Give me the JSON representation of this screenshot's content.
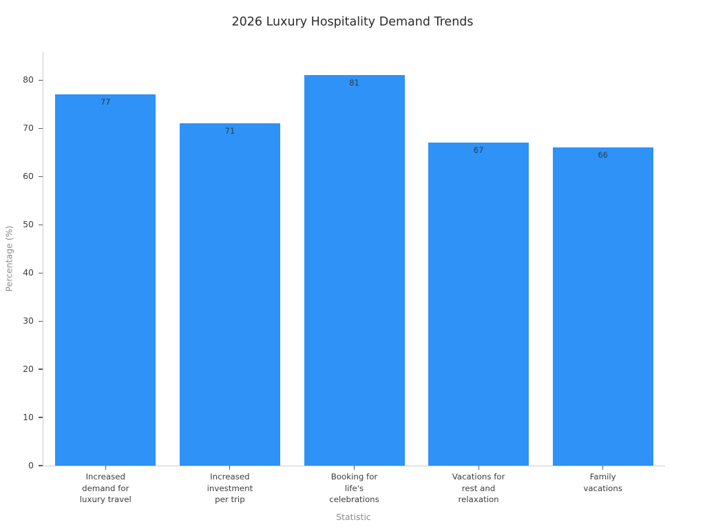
{
  "chart_data": {
    "type": "bar",
    "title": "2026 Luxury Hospitality Demand Trends",
    "xlabel": "Statistic",
    "ylabel": "Percentage (%)",
    "categories": [
      "Increased\ndemand for\nluxury travel",
      "Increased\ninvestment\nper trip",
      "Booking for\nlife's\ncelebrations",
      "Vacations for\nrest and\nrelaxation",
      "Family\nvacations"
    ],
    "values": [
      77,
      71,
      81,
      67,
      66
    ],
    "value_labels_shown": true,
    "yticks": [
      0,
      10,
      20,
      30,
      40,
      50,
      60,
      70,
      80
    ],
    "ylim": [
      0,
      85.9
    ],
    "grid": false,
    "legend_position": "none",
    "colors": {
      "bar": "#2E92F7",
      "value_label": "#2e3d4e",
      "tick_label": "#3c3c3c",
      "axis_label": "#8c8c8c",
      "spine": "#cbcbcb",
      "title": "#2b2b2b"
    }
  }
}
